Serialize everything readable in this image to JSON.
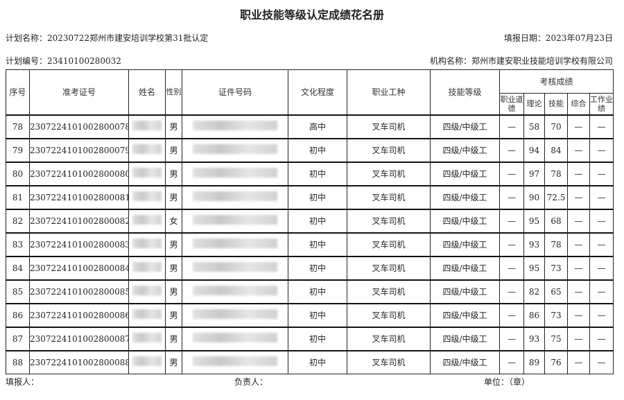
{
  "title": "职业技能等级认定成绩花名册",
  "plan_name": "计划名称：20230722郑州市建安培训学校第31批认定",
  "fill_date": "填报日期：2023年07月23日",
  "plan_no": "计划编号：23410100280032",
  "org_name": "机构名称：郑州市建安职业技能培训学校有限公司",
  "headers": {
    "seq": "序号",
    "exam_no": "准考证号",
    "name": "姓名",
    "gender": "性别",
    "id_no": "证件号码",
    "education": "文化程度",
    "occupation": "职业工种",
    "level": "技能等级",
    "scores": "考核成绩",
    "ethics": "职业道德",
    "theory": "理论",
    "skill": "技能",
    "overall": "综合",
    "work": "工作业绩"
  },
  "rows": [
    {
      "seq": "78",
      "exam_no": "2307224101002800078",
      "gender": "男",
      "education": "高中",
      "occupation": "叉车司机",
      "level": "四级/中级工",
      "ethics": "—",
      "theory": "58",
      "skill": "70",
      "overall": "—",
      "work": "—"
    },
    {
      "seq": "79",
      "exam_no": "2307224101002800079",
      "gender": "男",
      "education": "初中",
      "occupation": "叉车司机",
      "level": "四级/中级工",
      "ethics": "—",
      "theory": "94",
      "skill": "84",
      "overall": "—",
      "work": "—"
    },
    {
      "seq": "80",
      "exam_no": "2307224101002800080",
      "gender": "男",
      "education": "初中",
      "occupation": "叉车司机",
      "level": "四级/中级工",
      "ethics": "—",
      "theory": "97",
      "skill": "78",
      "overall": "—",
      "work": "—"
    },
    {
      "seq": "81",
      "exam_no": "2307224101002800081",
      "gender": "男",
      "education": "初中",
      "occupation": "叉车司机",
      "level": "四级/中级工",
      "ethics": "—",
      "theory": "90",
      "skill": "72.5",
      "overall": "—",
      "work": "—"
    },
    {
      "seq": "82",
      "exam_no": "2307224101002800082",
      "gender": "女",
      "education": "初中",
      "occupation": "叉车司机",
      "level": "四级/中级工",
      "ethics": "—",
      "theory": "95",
      "skill": "68",
      "overall": "—",
      "work": "—"
    },
    {
      "seq": "83",
      "exam_no": "2307224101002800083",
      "gender": "男",
      "education": "初中",
      "occupation": "叉车司机",
      "level": "四级/中级工",
      "ethics": "—",
      "theory": "93",
      "skill": "78",
      "overall": "—",
      "work": "—"
    },
    {
      "seq": "84",
      "exam_no": "2307224101002800084",
      "gender": "男",
      "education": "初中",
      "occupation": "叉车司机",
      "level": "四级/中级工",
      "ethics": "—",
      "theory": "95",
      "skill": "73",
      "overall": "—",
      "work": "—"
    },
    {
      "seq": "85",
      "exam_no": "2307224101002800085",
      "gender": "男",
      "education": "初中",
      "occupation": "叉车司机",
      "level": "四级/中级工",
      "ethics": "—",
      "theory": "82",
      "skill": "65",
      "overall": "—",
      "work": "—"
    },
    {
      "seq": "86",
      "exam_no": "2307224101002800086",
      "gender": "男",
      "education": "初中",
      "occupation": "叉车司机",
      "level": "四级/中级工",
      "ethics": "—",
      "theory": "86",
      "skill": "73",
      "overall": "—",
      "work": "—"
    },
    {
      "seq": "87",
      "exam_no": "2307224101002800087",
      "gender": "男",
      "education": "初中",
      "occupation": "叉车司机",
      "level": "四级/中级工",
      "ethics": "—",
      "theory": "93",
      "skill": "75",
      "overall": "—",
      "work": "—"
    },
    {
      "seq": "88",
      "exam_no": "2307224101002800088",
      "gender": "男",
      "education": "初中",
      "occupation": "叉车司机",
      "level": "四级/中级工",
      "ethics": "—",
      "theory": "89",
      "skill": "76",
      "overall": "—",
      "work": "—"
    }
  ],
  "footer": {
    "filler": "填报人：",
    "responsible": "负责人：",
    "unit": "单位：（章）"
  }
}
